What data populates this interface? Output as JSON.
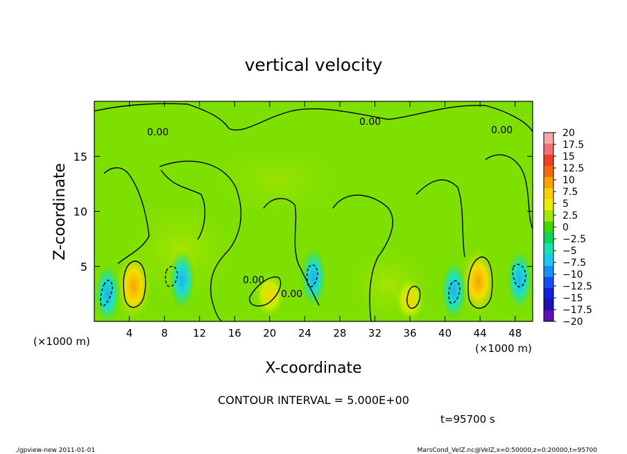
{
  "chart_data": {
    "type": "heatmap",
    "title": "vertical velocity",
    "xlabel": "X-coordinate",
    "ylabel": "Z-coordinate",
    "x_unit_left": "(×1000 m)",
    "x_unit_right": "(×1000 m)",
    "xlim": [
      0,
      50
    ],
    "ylim": [
      0,
      20
    ],
    "x_ticks": [
      "4",
      "8",
      "12",
      "16",
      "20",
      "24",
      "28",
      "32",
      "36",
      "40",
      "44",
      "48"
    ],
    "x_tick_values": [
      4,
      8,
      12,
      16,
      20,
      24,
      28,
      32,
      36,
      40,
      44,
      48
    ],
    "y_ticks": [
      "5",
      "10",
      "15"
    ],
    "y_tick_values": [
      5,
      10,
      15
    ],
    "colorbar": {
      "labels": [
        "20",
        "17.5",
        "15",
        "12.5",
        "10",
        "7.5",
        "5",
        "2.5",
        "0",
        "−2.5",
        "−5",
        "−7.5",
        "−10",
        "−12.5",
        "−15",
        "−17.5",
        "−20"
      ],
      "colors": [
        "#f8a8a8",
        "#f47070",
        "#f04028",
        "#f46a10",
        "#f8a000",
        "#f8d000",
        "#e8f000",
        "#a0e800",
        "#40d800",
        "#10d060",
        "#18e0b8",
        "#20c8f0",
        "#1890f8",
        "#1050f0",
        "#1020d8",
        "#2010b0",
        "#6010b0"
      ]
    },
    "contour_interval_text": "CONTOUR INTERVAL = 5.000E+00",
    "contour_label": "0.00",
    "time_text": "t=95700 s",
    "updrafts": [
      {
        "x": 4.5,
        "z": 3.2,
        "w": 8
      },
      {
        "x": 43.8,
        "z": 3.6,
        "w": 8
      },
      {
        "x": 20.0,
        "z": 2.4,
        "w": 5
      },
      {
        "x": 36.0,
        "z": 2.0,
        "w": 5
      }
    ],
    "downdrafts": [
      {
        "x": 1.5,
        "z": 2.5,
        "w": -6
      },
      {
        "x": 10.0,
        "z": 3.8,
        "w": -5
      },
      {
        "x": 25.0,
        "z": 4.0,
        "w": -5
      },
      {
        "x": 41.0,
        "z": 2.8,
        "w": -6
      },
      {
        "x": 48.5,
        "z": 3.8,
        "w": -7
      }
    ]
  },
  "footer": {
    "left": "./gpview-new   2011-01-01",
    "right": "MarsCond_VelZ.nc@VelZ,x=0:50000,z=0:20000,t=95700"
  }
}
